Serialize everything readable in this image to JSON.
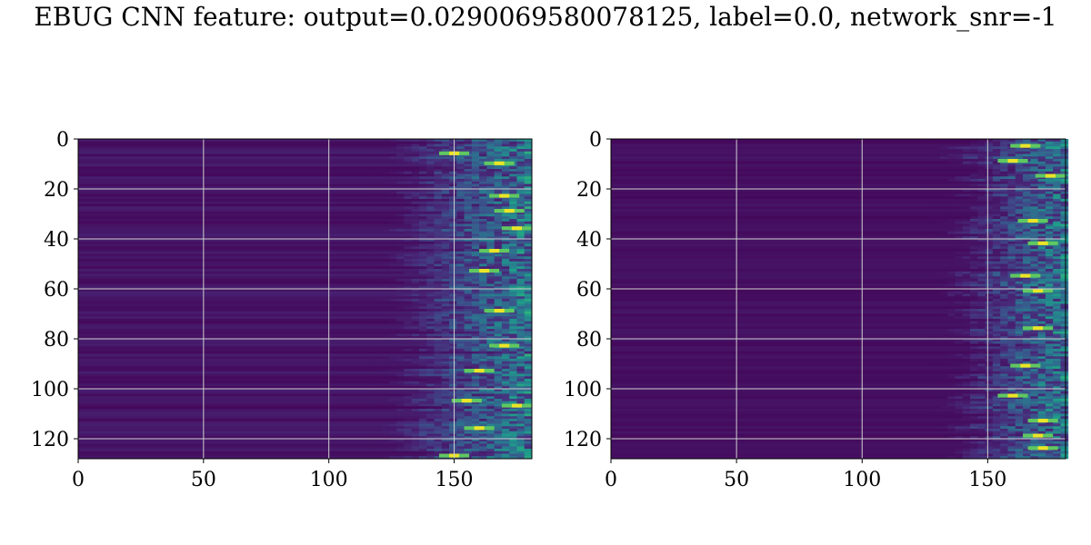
{
  "title": "EBUG CNN feature: output=0.0290069580078125, label=0.0, network_snr=-1",
  "chart_data": [
    {
      "type": "heatmap",
      "colormap": "viridis",
      "x_range": [
        0,
        181
      ],
      "y_range": [
        0,
        128
      ],
      "y_inverted": true,
      "xticks": [
        0,
        50,
        100,
        150
      ],
      "yticks": [
        0,
        20,
        40,
        60,
        80,
        100,
        120
      ],
      "grid": true,
      "onset_x": 130,
      "bright_rows": [
        5,
        9,
        22,
        28,
        35,
        44,
        52,
        68,
        82,
        92,
        104,
        106,
        115,
        126
      ],
      "bright_cols": [
        150,
        168,
        170,
        172,
        175,
        166,
        162,
        168,
        170,
        160,
        155,
        175,
        160,
        150
      ]
    },
    {
      "type": "heatmap",
      "colormap": "viridis",
      "x_range": [
        0,
        181
      ],
      "y_range": [
        0,
        128
      ],
      "y_inverted": true,
      "xticks": [
        0,
        50,
        100,
        150
      ],
      "yticks": [
        0,
        20,
        40,
        60,
        80,
        100,
        120
      ],
      "grid": true,
      "onset_x": 140,
      "bright_rows": [
        2,
        8,
        14,
        32,
        41,
        54,
        60,
        75,
        90,
        102,
        112,
        118,
        123
      ],
      "bright_cols": [
        165,
        160,
        175,
        168,
        172,
        165,
        170,
        170,
        165,
        160,
        172,
        170,
        172
      ]
    }
  ]
}
